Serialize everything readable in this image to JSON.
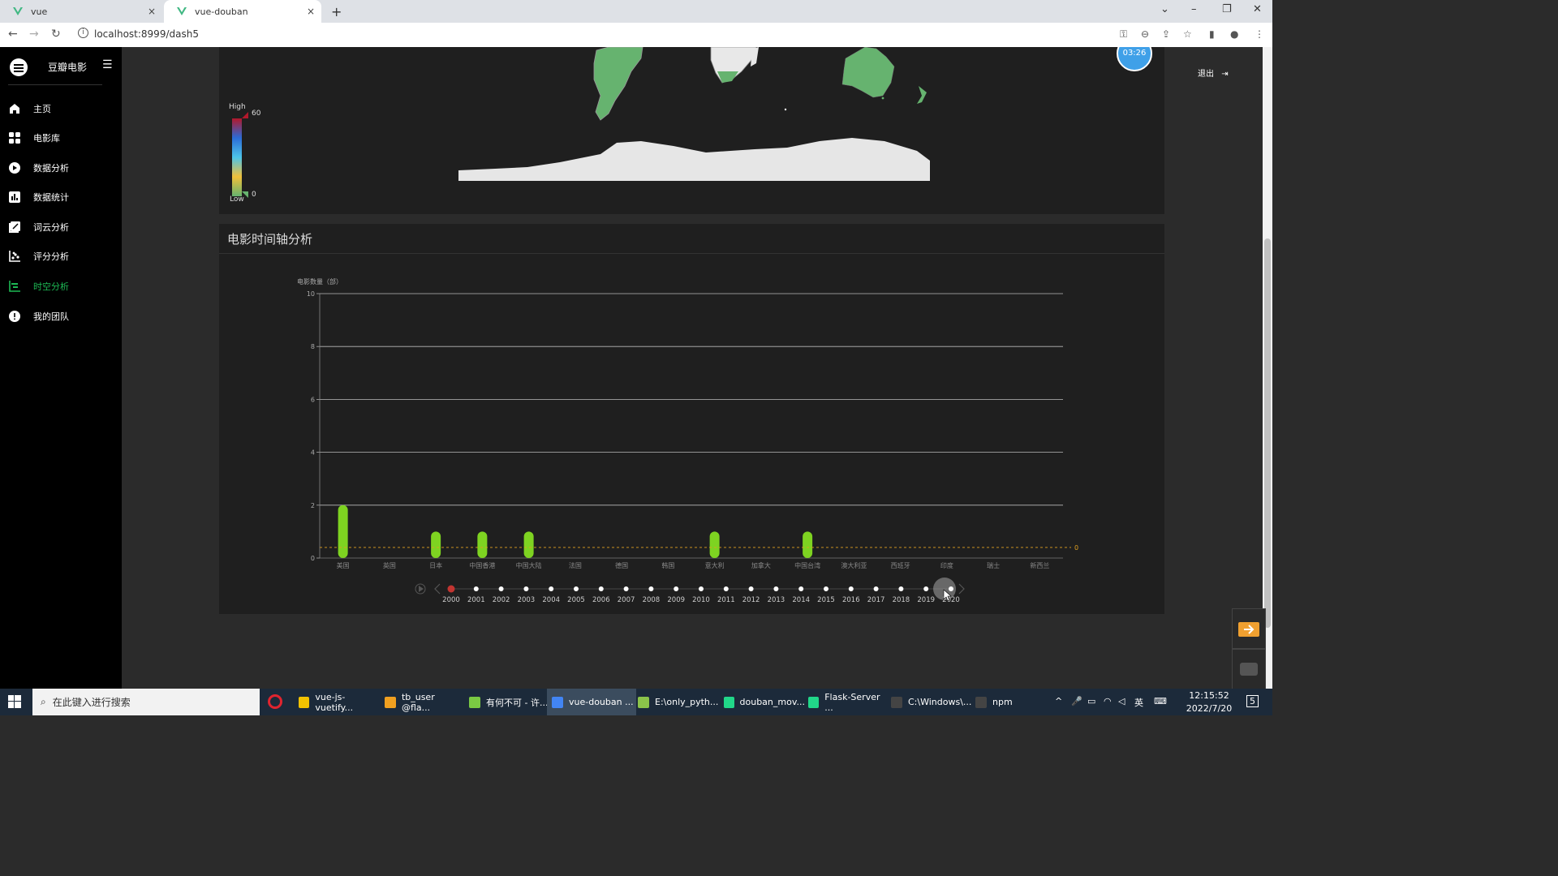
{
  "browser": {
    "tabs": [
      {
        "label": "vue",
        "close": "×"
      },
      {
        "label": "vue-douban",
        "close": "×"
      }
    ],
    "new_tab": "+",
    "url": "localhost:8999/dash5"
  },
  "sidebar": {
    "brand": "豆瓣电影",
    "items": [
      {
        "label": "主页",
        "icon": "home-icon"
      },
      {
        "label": "电影库",
        "icon": "grid-icon"
      },
      {
        "label": "数据分析",
        "icon": "play-icon"
      },
      {
        "label": "数据统计",
        "icon": "bar-chart-icon"
      },
      {
        "label": "词云分析",
        "icon": "edit-icon"
      },
      {
        "label": "评分分析",
        "icon": "scatter-icon"
      },
      {
        "label": "时空分析",
        "icon": "timeline-icon",
        "active": true
      },
      {
        "label": "我的团队",
        "icon": "alert-icon"
      }
    ]
  },
  "header": {
    "logout": "退出",
    "avatar_badge": "03:26"
  },
  "map_card": {
    "legend": {
      "high_label": "High",
      "low_label": "Low",
      "max": "60",
      "min": "0"
    }
  },
  "timeline_card": {
    "title": "电影时间轴分析"
  },
  "chart_data": {
    "type": "bar",
    "ylabel": "电影数量（部）",
    "ylim": [
      0,
      10
    ],
    "yticks": [
      "0",
      "2",
      "4",
      "6",
      "8",
      "10"
    ],
    "categories": [
      "美国",
      "英国",
      "日本",
      "中国香港",
      "中国大陆",
      "法国",
      "德国",
      "韩国",
      "意大利",
      "加拿大",
      "中国台湾",
      "澳大利亚",
      "西班牙",
      "印度",
      "瑞士",
      "新西兰"
    ],
    "values": [
      2,
      0,
      1,
      1,
      1,
      0,
      0,
      0,
      1,
      0,
      1,
      0,
      0,
      0,
      0,
      0
    ],
    "average_line": 0.4,
    "average_label": "0",
    "bar_color": "#7ed321",
    "timeline": {
      "years": [
        "2000",
        "2001",
        "2002",
        "2003",
        "2004",
        "2005",
        "2006",
        "2007",
        "2008",
        "2009",
        "2010",
        "2011",
        "2012",
        "2013",
        "2014",
        "2015",
        "2016",
        "2017",
        "2018",
        "2019",
        "2020"
      ],
      "current_index": 0
    }
  },
  "taskbar": {
    "search_placeholder": "在此键入进行搜索",
    "tasks": [
      {
        "label": "vue-js-vuetify...",
        "color": "#f2c200"
      },
      {
        "label": "tb_user @fla...",
        "color": "#f0a020"
      },
      {
        "label": "有何不可 - 许...",
        "color": "#7ac943"
      },
      {
        "label": "vue-douban ...",
        "color": "#4285f4",
        "active": true
      },
      {
        "label": "E:\\only_pyth...",
        "color": "#8bc34a"
      },
      {
        "label": "douban_mov...",
        "color": "#21d789"
      },
      {
        "label": "Flask-Server ...",
        "color": "#21d789"
      },
      {
        "label": "C:\\Windows\\...",
        "color": "#444444"
      },
      {
        "label": "npm",
        "color": "#444444"
      }
    ],
    "ime": "英",
    "time": "12:15:52",
    "date": "2022/7/20",
    "notifications": "5"
  }
}
